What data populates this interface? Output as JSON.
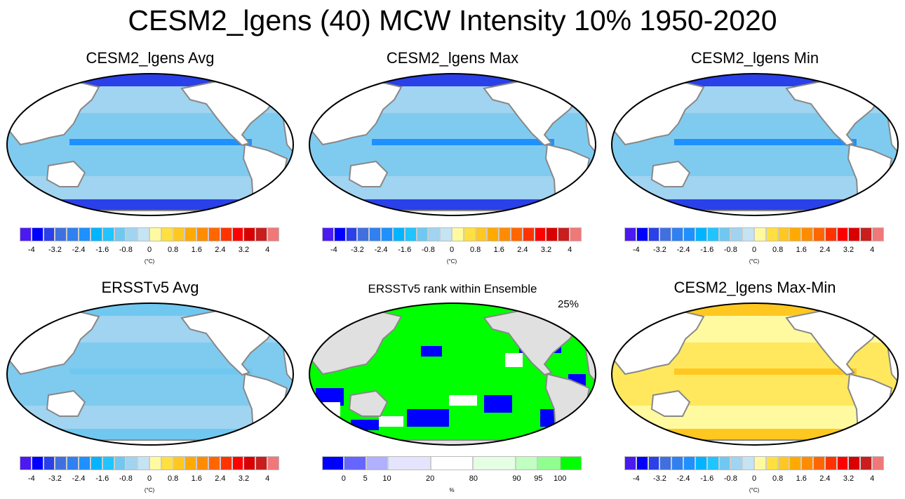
{
  "title": "CESM2_lgens (40) MCW Intensity 10% 1950-2020",
  "temp_colorbar": {
    "colors": [
      "#4B1AF0",
      "#0000FF",
      "#2A40E8",
      "#4070E0",
      "#3080F0",
      "#1E90FF",
      "#00B4FF",
      "#20C4FF",
      "#70C8F0",
      "#A0D4F0",
      "#C4E4F4",
      "#FFFAA0",
      "#FFE040",
      "#FFC820",
      "#FFAA00",
      "#FF8C00",
      "#FF6600",
      "#FF3300",
      "#FF0000",
      "#D80000",
      "#C81E1E",
      "#F07878"
    ],
    "labels": [
      "-4",
      "-3.2",
      "-2.4",
      "-1.6",
      "-0.8",
      "0",
      "0.8",
      "1.6",
      "2.4",
      "3.2",
      "4"
    ],
    "unit": "(°C)"
  },
  "rank_colorbar": {
    "colors": [
      "#0000FF",
      "#6666FF",
      "#B0B0FF",
      "#E4E4FF",
      "#FFFFFF",
      "#E4FFE4",
      "#C0FFC0",
      "#90FF90",
      "#00FF00"
    ],
    "labels": [
      "0",
      "5",
      "10",
      "20",
      "80",
      "90",
      "95",
      "100"
    ],
    "unit": "%"
  },
  "panels": [
    {
      "title": "CESM2_lgens Avg",
      "type": "temp",
      "ocean": "#A0D4F0",
      "band": "#70C8F0",
      "eq": "#1E90FF",
      "pole": "#2A40E8",
      "land": "#FFFFFF"
    },
    {
      "title": "CESM2_lgens Max",
      "type": "temp",
      "ocean": "#A0D4F0",
      "band": "#70C8F0",
      "eq": "#1E90FF",
      "pole": "#2A40E8",
      "land": "#FFFFFF"
    },
    {
      "title": "CESM2_lgens Min",
      "type": "temp",
      "ocean": "#A0D4F0",
      "band": "#70C8F0",
      "eq": "#1E90FF",
      "pole": "#2A40E8",
      "land": "#FFFFFF"
    },
    {
      "title": "ERSSTv5 Avg",
      "type": "temp",
      "ocean": "#A0D4F0",
      "band": "#70C8F0",
      "eq": "#70C8F0",
      "pole": "#70C8F0",
      "land": "#FFFFFF"
    },
    {
      "title": "ERSSTv5 rank within Ensemble",
      "type": "rank",
      "note": "25%",
      "ocean": "#00FF00",
      "band": "#0000FF",
      "eq": "#FFFFFF",
      "pole": "#00FF00",
      "land": "#E0E0E0"
    },
    {
      "title": "CESM2_lgens Max-Min",
      "type": "temp",
      "ocean": "#FFFAA0",
      "band": "#FFE040",
      "eq": "#FFC820",
      "pole": "#FFC820",
      "land": "#FFFFFF"
    }
  ]
}
